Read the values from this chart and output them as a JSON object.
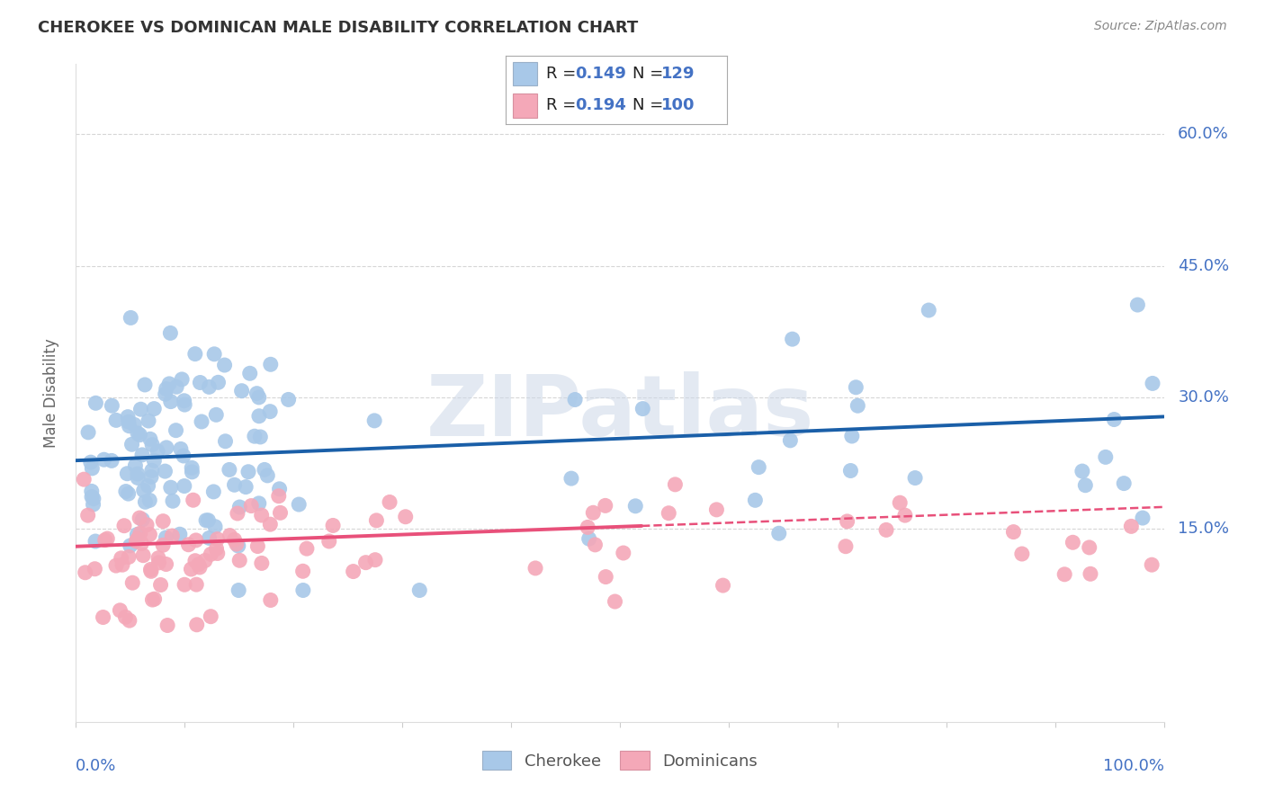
{
  "title": "CHEROKEE VS DOMINICAN MALE DISABILITY CORRELATION CHART",
  "source": "Source: ZipAtlas.com",
  "ylabel": "Male Disability",
  "cherokee_R": 0.149,
  "cherokee_N": 129,
  "dominican_R": 0.194,
  "dominican_N": 100,
  "cherokee_color": "#a8c8e8",
  "dominican_color": "#f4a8b8",
  "cherokee_line_color": "#1a5fa8",
  "dominican_line_color": "#e8507a",
  "dominican_dash_color": "#e8a0b0",
  "background_color": "#ffffff",
  "grid_color": "#cccccc",
  "watermark": "ZIPatlas",
  "legend_labels": [
    "Cherokee",
    "Dominicans"
  ],
  "axis_label_color": "#4472c4",
  "title_color": "#333333",
  "source_color": "#888888",
  "ylabel_color": "#666666",
  "legend_text_color": "#222222",
  "legend_value_color": "#4472c4",
  "ytick_positions": [
    0.15,
    0.3,
    0.45,
    0.6
  ],
  "ytick_labels": [
    "15.0%",
    "30.0%",
    "45.0%",
    "60.0%"
  ],
  "ylim_low": -0.07,
  "ylim_high": 0.68,
  "xlim_low": 0.0,
  "xlim_high": 1.0
}
